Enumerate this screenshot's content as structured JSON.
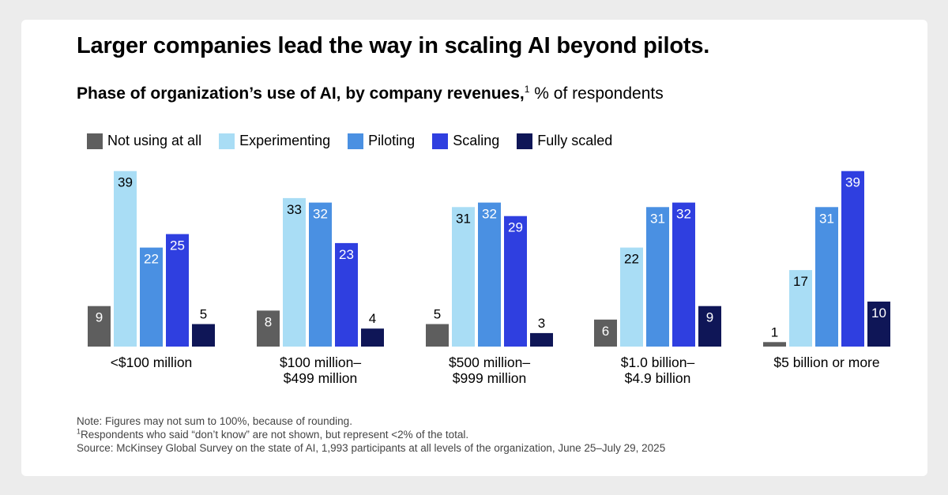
{
  "title": "Larger companies lead the way in scaling AI beyond pilots.",
  "subtitle": {
    "bold": "Phase of organization’s use of AI, by company revenues,",
    "footnote_mark": "1",
    "rest": " % of respondents"
  },
  "legend": [
    {
      "label": "Not using at all",
      "color": "#5e5e5e"
    },
    {
      "label": "Experimenting",
      "color": "#a9ddf5"
    },
    {
      "label": "Piloting",
      "color": "#4a90e2"
    },
    {
      "label": "Scaling",
      "color": "#2f3fe0"
    },
    {
      "label": "Fully scaled",
      "color": "#0f1657"
    }
  ],
  "chart_data": {
    "type": "bar",
    "title": "Phase of organization’s use of AI, by company revenues",
    "ylabel": "% of respondents",
    "xlabel": "",
    "ylim": [
      0,
      40
    ],
    "categories": [
      [
        "<$100 million"
      ],
      [
        "$100 million–",
        "$499 million"
      ],
      [
        "$500 million–",
        "$999 million"
      ],
      [
        "$1.0 billion–",
        "$4.9 billion"
      ],
      [
        "$5 billion or more"
      ]
    ],
    "series": [
      {
        "name": "Not using at all",
        "values": [
          9,
          8,
          5,
          6,
          1
        ]
      },
      {
        "name": "Experimenting",
        "values": [
          39,
          33,
          31,
          22,
          17
        ]
      },
      {
        "name": "Piloting",
        "values": [
          22,
          32,
          32,
          31,
          31
        ]
      },
      {
        "name": "Scaling",
        "values": [
          25,
          23,
          29,
          32,
          39
        ]
      },
      {
        "name": "Fully scaled",
        "values": [
          5,
          4,
          3,
          9,
          10
        ]
      }
    ]
  },
  "notes": {
    "note": "Note: Figures may not sum to 100%, because of rounding.",
    "footnote_mark": "1",
    "footnote": "Respondents who said “don’t know” are not shown, but represent <2% of the total.",
    "source": "Source: McKinsey Global Survey on the state of AI, 1,993 participants at all levels of the organization, June 25–July 29, 2025"
  }
}
